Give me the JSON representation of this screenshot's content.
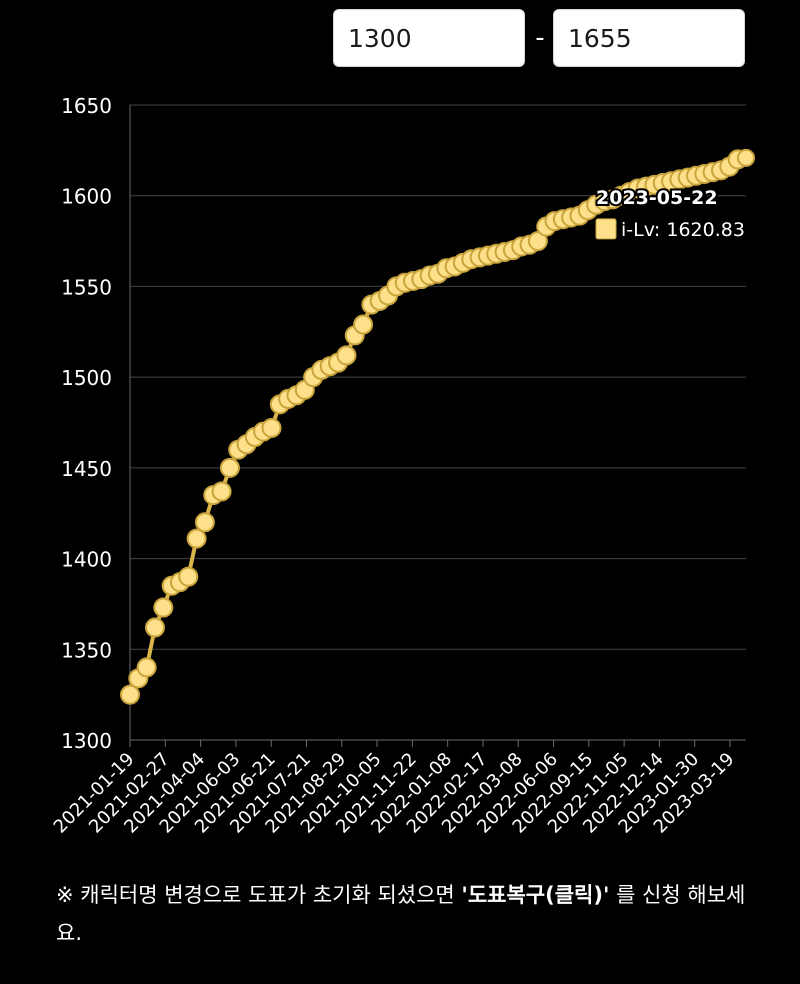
{
  "range": {
    "min_value": "1300",
    "separator": "-",
    "max_value": "1655"
  },
  "chart_data": {
    "type": "line",
    "title": "",
    "xlabel": "",
    "ylabel": "",
    "ylim": [
      1300,
      1650
    ],
    "y_ticks": [
      "1650",
      "1600",
      "1550",
      "1500",
      "1450",
      "1400",
      "1350",
      "1300"
    ],
    "x_tick_labels": [
      "2021-01-19",
      "2021-02-27",
      "2021-04-04",
      "2021-06-03",
      "2021-06-21",
      "2021-07-21",
      "2021-08-29",
      "2021-10-05",
      "2021-11-22",
      "2022-01-08",
      "2022-02-17",
      "2022-03-08",
      "2022-06-06",
      "2022-09-15",
      "2022-11-05",
      "2022-12-14",
      "2023-01-30",
      "2023-03-19"
    ],
    "grid": true,
    "line_color": "#d9b54a",
    "marker_color": "#ffe08a",
    "series": [
      {
        "name": "i-Lv",
        "values": [
          1325,
          1334,
          1340,
          1362,
          1373,
          1385,
          1387,
          1390,
          1411,
          1420,
          1435,
          1437,
          1450,
          1460,
          1463,
          1467,
          1470,
          1472,
          1485,
          1488,
          1490,
          1493,
          1500,
          1504,
          1506,
          1508,
          1512,
          1523,
          1529,
          1540,
          1542,
          1545,
          1550,
          1552,
          1553,
          1554,
          1556,
          1557,
          1560,
          1561,
          1563,
          1565,
          1566,
          1567,
          1568,
          1569,
          1570,
          1572,
          1573,
          1575,
          1583,
          1586,
          1587,
          1588,
          1589,
          1592,
          1595,
          1597,
          1598,
          1600,
          1602,
          1604,
          1605,
          1606,
          1607,
          1608,
          1609,
          1610,
          1611,
          1612,
          1613,
          1614,
          1616,
          1620,
          1620.83
        ]
      }
    ],
    "tooltip": {
      "date": "2023-05-22",
      "series_name": "i-Lv",
      "value": "1620.83",
      "text": "i-Lv: 1620.83"
    }
  },
  "note": {
    "prefix": "※ 캐릭터명 변경으로 도표가 초기화 되셨으면 ",
    "link_text": "'도표복구(클릭)'",
    "suffix": " 를 신청 해보세요."
  }
}
